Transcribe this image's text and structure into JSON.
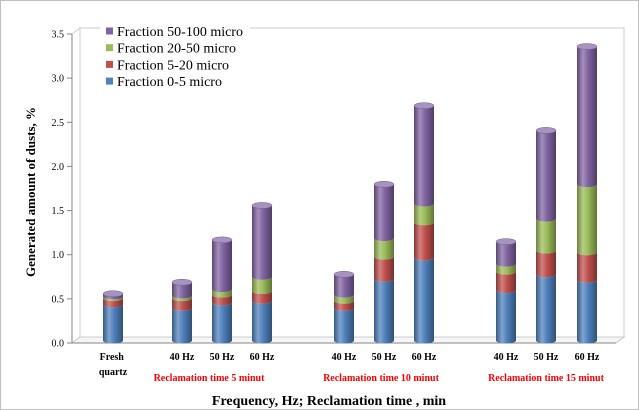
{
  "chart_data": {
    "type": "bar",
    "stacked": true,
    "three_d": true,
    "xlabel": "Frequency, Hz; Reclamation time , min",
    "ylabel": "Generated amount of dusts, %",
    "ylim": [
      0,
      3.5
    ],
    "yticks": [
      "0.0",
      "0.5",
      "1.0",
      "1.5",
      "2.0",
      "2.5",
      "3.0",
      "3.5"
    ],
    "grid": false,
    "legend_position": "top-left",
    "categories": [
      "Fresh quartz",
      "40 Hz",
      "50 Hz",
      "60 Hz",
      "40 Hz",
      "50 Hz",
      "60 Hz",
      "40 Hz",
      "50 Hz",
      "60 Hz"
    ],
    "category_groups": [
      {
        "label": "Reclamation time 5 minut",
        "categories": [
          1,
          2,
          3
        ]
      },
      {
        "label": "Reclamation time 10 minut",
        "categories": [
          4,
          5,
          6
        ]
      },
      {
        "label": "Reclamation time 15 minut",
        "categories": [
          7,
          8,
          9
        ]
      }
    ],
    "group_label_color": "#ff0000",
    "series": [
      {
        "name": "Fraction 0-5 micro",
        "color": "#4f81bd",
        "values": [
          0.41,
          0.37,
          0.43,
          0.45,
          0.37,
          0.7,
          0.94,
          0.57,
          0.75,
          0.69
        ]
      },
      {
        "name": "Fraction 5-20 micro",
        "color": "#c0504d",
        "values": [
          0.07,
          0.11,
          0.09,
          0.11,
          0.08,
          0.25,
          0.4,
          0.21,
          0.27,
          0.31
        ]
      },
      {
        "name": "Fraction 20-50 micro",
        "color": "#9bbb59",
        "values": [
          0.02,
          0.03,
          0.06,
          0.16,
          0.07,
          0.21,
          0.21,
          0.09,
          0.36,
          0.77
        ]
      },
      {
        "name": "Fraction 50-100 micro",
        "color": "#8064a2",
        "values": [
          0.03,
          0.15,
          0.56,
          0.81,
          0.23,
          0.61,
          1.11,
          0.25,
          1.0,
          1.56
        ]
      }
    ]
  }
}
